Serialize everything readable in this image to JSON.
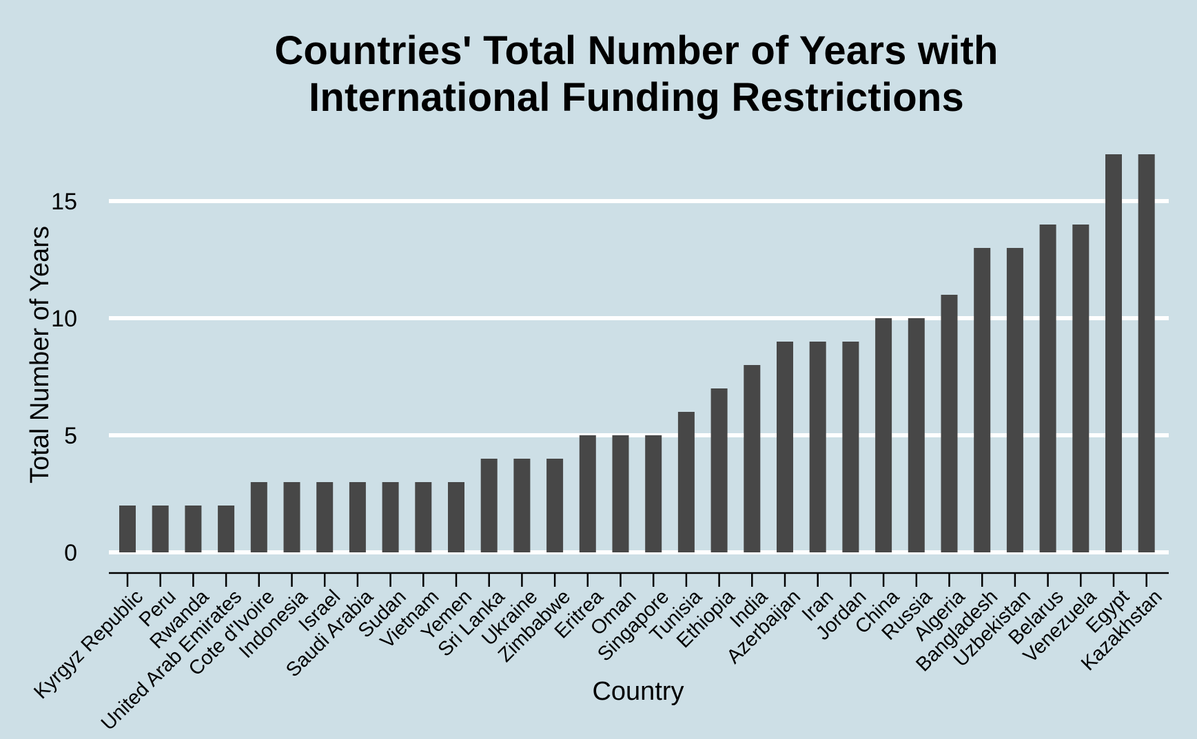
{
  "chart_data": {
    "type": "bar",
    "title_lines": [
      "Countries' Total Number of Years with",
      "International Funding Restrictions"
    ],
    "xlabel": "Country",
    "ylabel": "Total Number of Years",
    "categories": [
      "Kyrgyz Republic",
      "Peru",
      "Rwanda",
      "United Arab Emirates",
      "Cote d'Ivoire",
      "Indonesia",
      "Israel",
      "Saudi Arabia",
      "Sudan",
      "Vietnam",
      "Yemen",
      "Sri Lanka",
      "Ukraine",
      "Zimbabwe",
      "Eritrea",
      "Oman",
      "Singapore",
      "Tunisia",
      "Ethiopia",
      "India",
      "Azerbaijan",
      "Iran",
      "Jordan",
      "China",
      "Russia",
      "Algeria",
      "Bangladesh",
      "Uzbekistan",
      "Belarus",
      "Venezuela",
      "Egypt",
      "Kazakhstan"
    ],
    "values": [
      2,
      2,
      2,
      2,
      3,
      3,
      3,
      3,
      3,
      3,
      3,
      4,
      4,
      4,
      5,
      5,
      5,
      6,
      7,
      8,
      9,
      9,
      9,
      10,
      10,
      11,
      13,
      13,
      14,
      14,
      17,
      17
    ],
    "ylim": [
      0,
      17
    ],
    "yticks": [
      "0",
      "5",
      "10",
      "15"
    ],
    "grid": "horizontal",
    "colors": {
      "background": "#cddfe6",
      "bar": "#474747",
      "grid": "#ffffff",
      "axis": "#000000"
    }
  }
}
